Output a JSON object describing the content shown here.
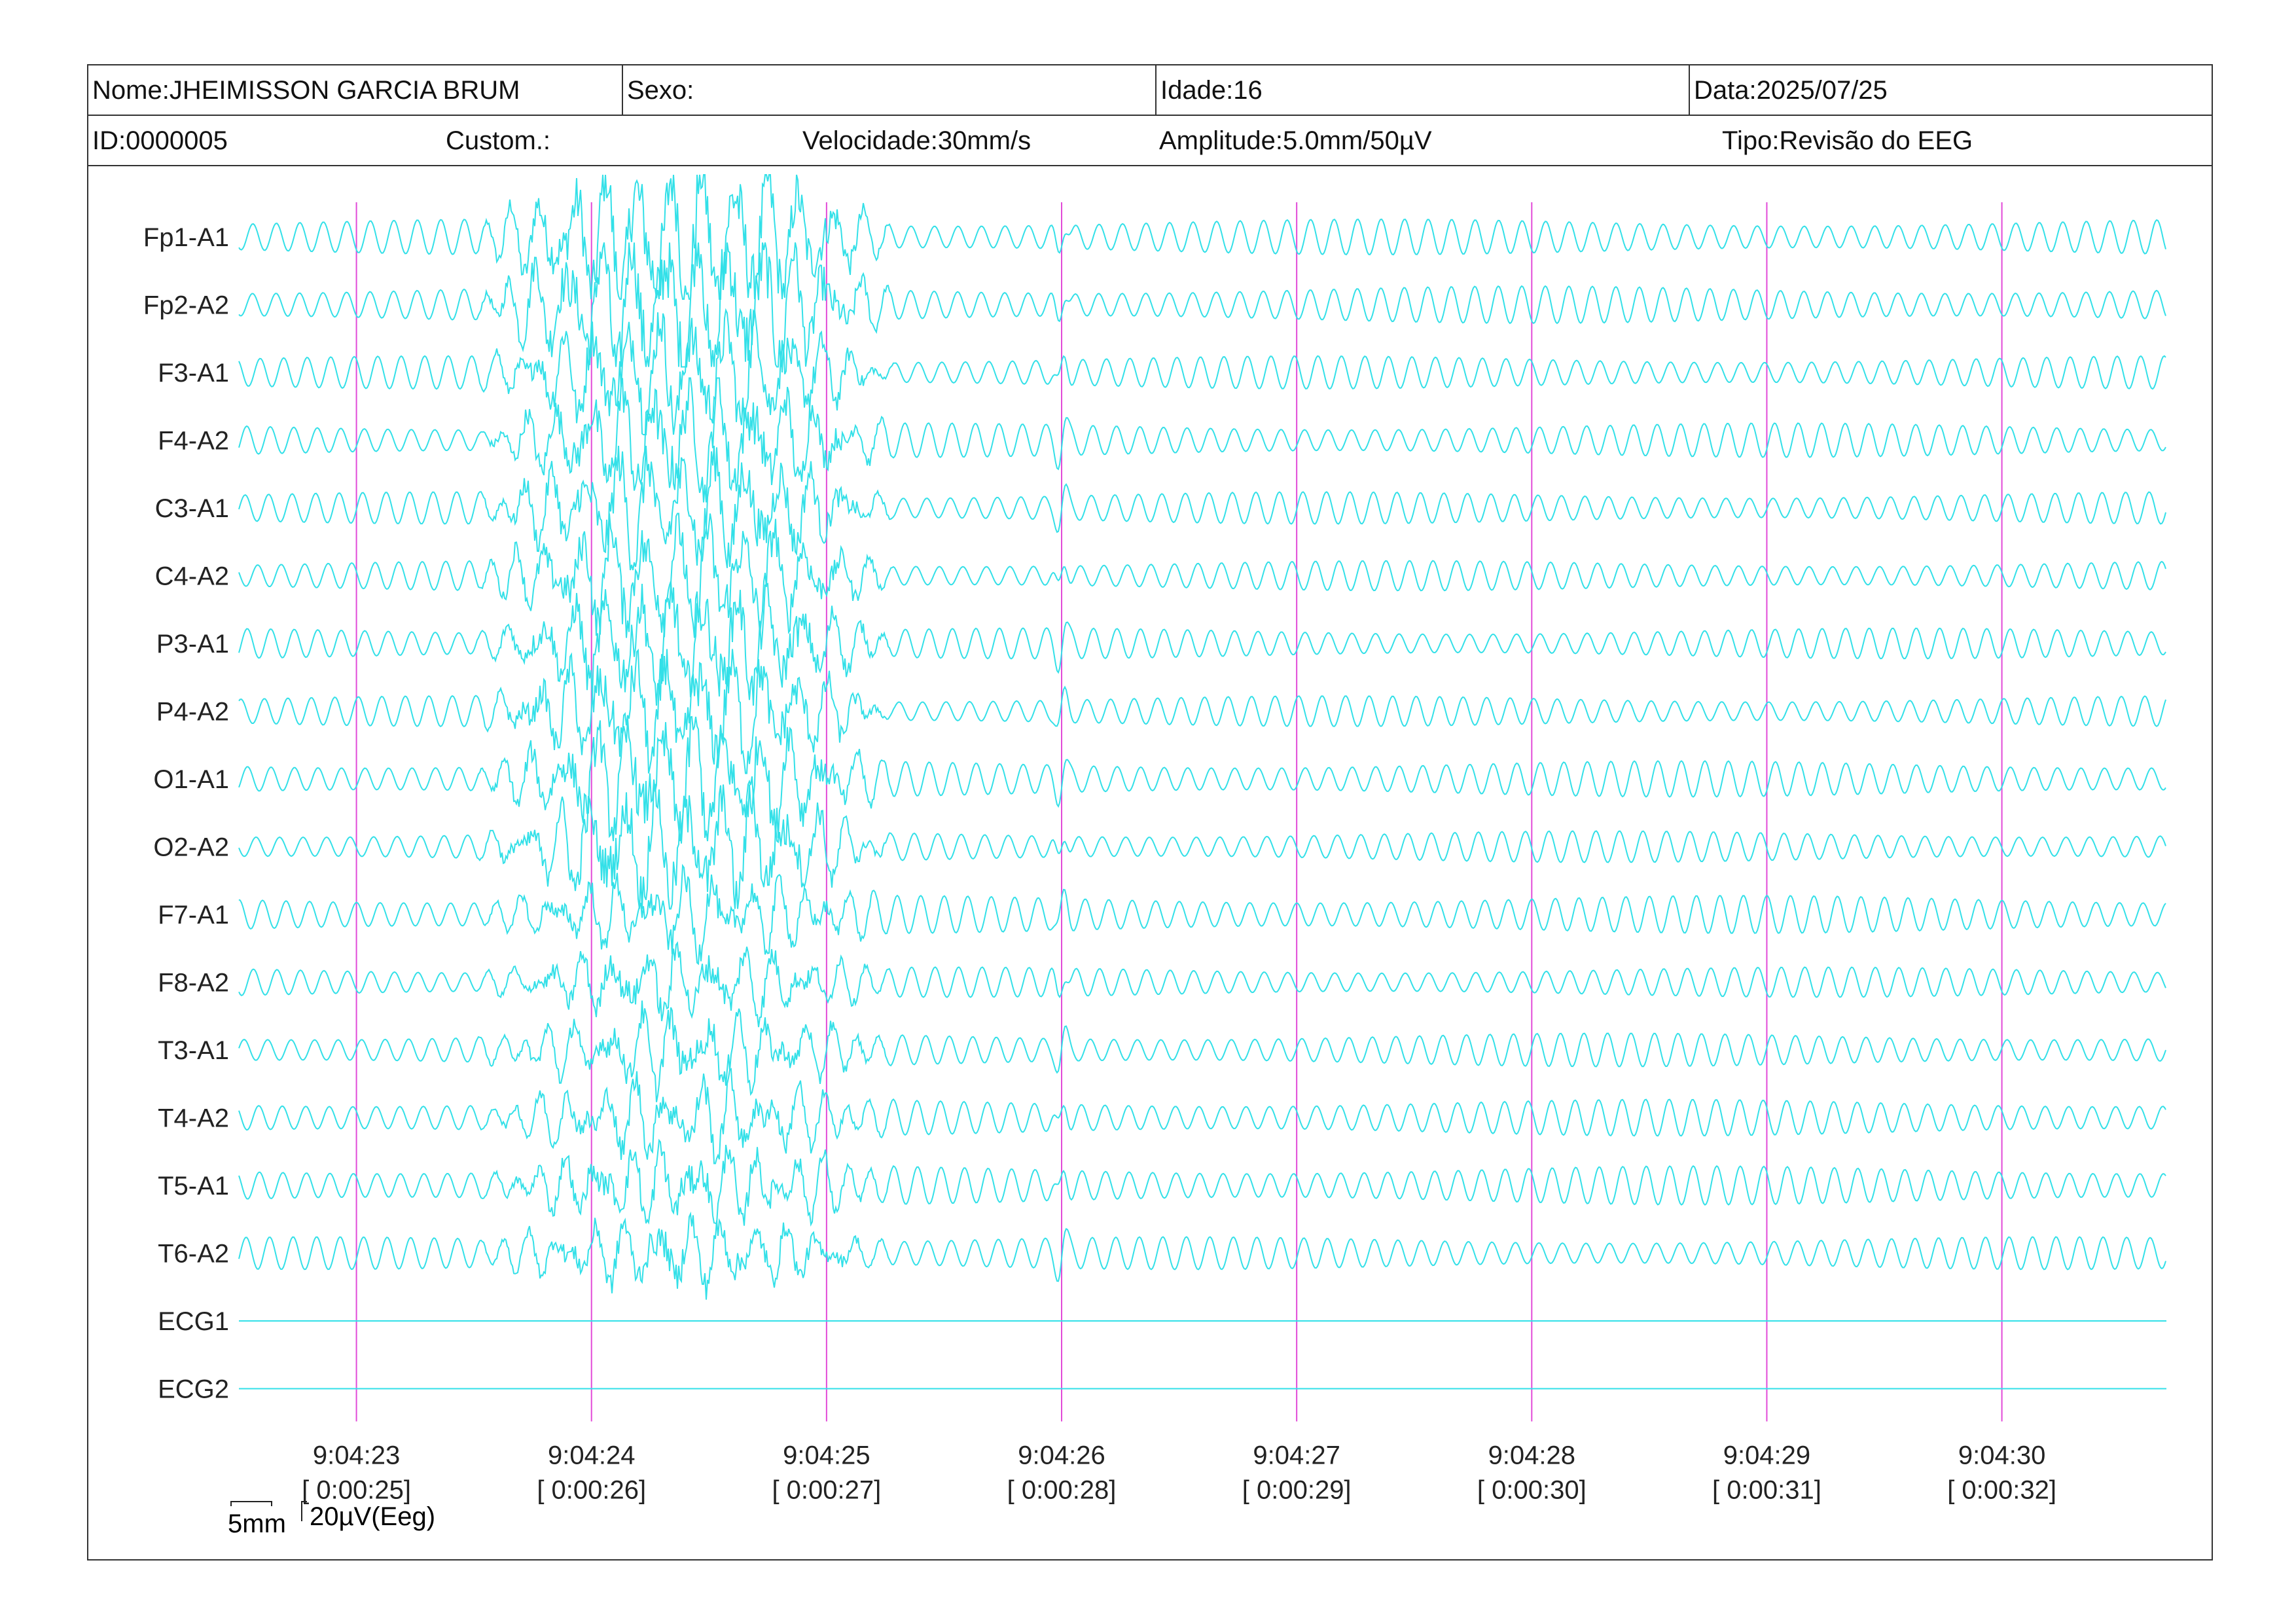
{
  "header": {
    "row1": {
      "nome": "Nome:JHEIMISSON GARCIA BRUM",
      "sexo": "Sexo:",
      "idade": "Idade:16",
      "data": "Data:2025/07/25"
    },
    "row2": {
      "id": "ID:0000005",
      "custom": "Custom.:",
      "velocidade": "Velocidade:30mm/s",
      "amplitude": "Amplitude:5.0mm/50µV",
      "tipo": "Tipo:Revisão do EEG"
    }
  },
  "scale": {
    "time": "5mm",
    "amplitude": "20µV(Eeg)"
  },
  "colors": {
    "trace": "#33e0e8",
    "marker": "#e24ad8",
    "border": "#333333"
  },
  "chart_data": {
    "type": "line",
    "channels": [
      "Fp1-A1",
      "Fp2-A2",
      "F3-A1",
      "F4-A2",
      "C3-A1",
      "C4-A2",
      "P3-A1",
      "P4-A2",
      "O1-A1",
      "O2-A2",
      "F7-A1",
      "F8-A2",
      "T3-A1",
      "T4-A2",
      "T5-A1",
      "T6-A2",
      "ECG1",
      "ECG2"
    ],
    "time_markers": [
      {
        "clock": "9:04:23",
        "elapsed": "[ 0:00:25]"
      },
      {
        "clock": "9:04:24",
        "elapsed": "[ 0:00:26]"
      },
      {
        "clock": "9:04:25",
        "elapsed": "[ 0:00:27]"
      },
      {
        "clock": "9:04:26",
        "elapsed": "[ 0:00:28]"
      },
      {
        "clock": "9:04:27",
        "elapsed": "[ 0:00:29]"
      },
      {
        "clock": "9:04:28",
        "elapsed": "[ 0:00:30]"
      },
      {
        "clock": "9:04:29",
        "elapsed": "[ 0:00:31]"
      },
      {
        "clock": "9:04:30",
        "elapsed": "[ 0:00:32]"
      }
    ],
    "x_range_seconds": [
      24.5,
      32.7
    ],
    "dominant_frequency_hz": 10,
    "artifact_windows_s": [
      [
        25.5,
        27.3
      ],
      [
        27.9,
        28.1
      ]
    ],
    "flat_channels": [
      "ECG1",
      "ECG2"
    ]
  }
}
